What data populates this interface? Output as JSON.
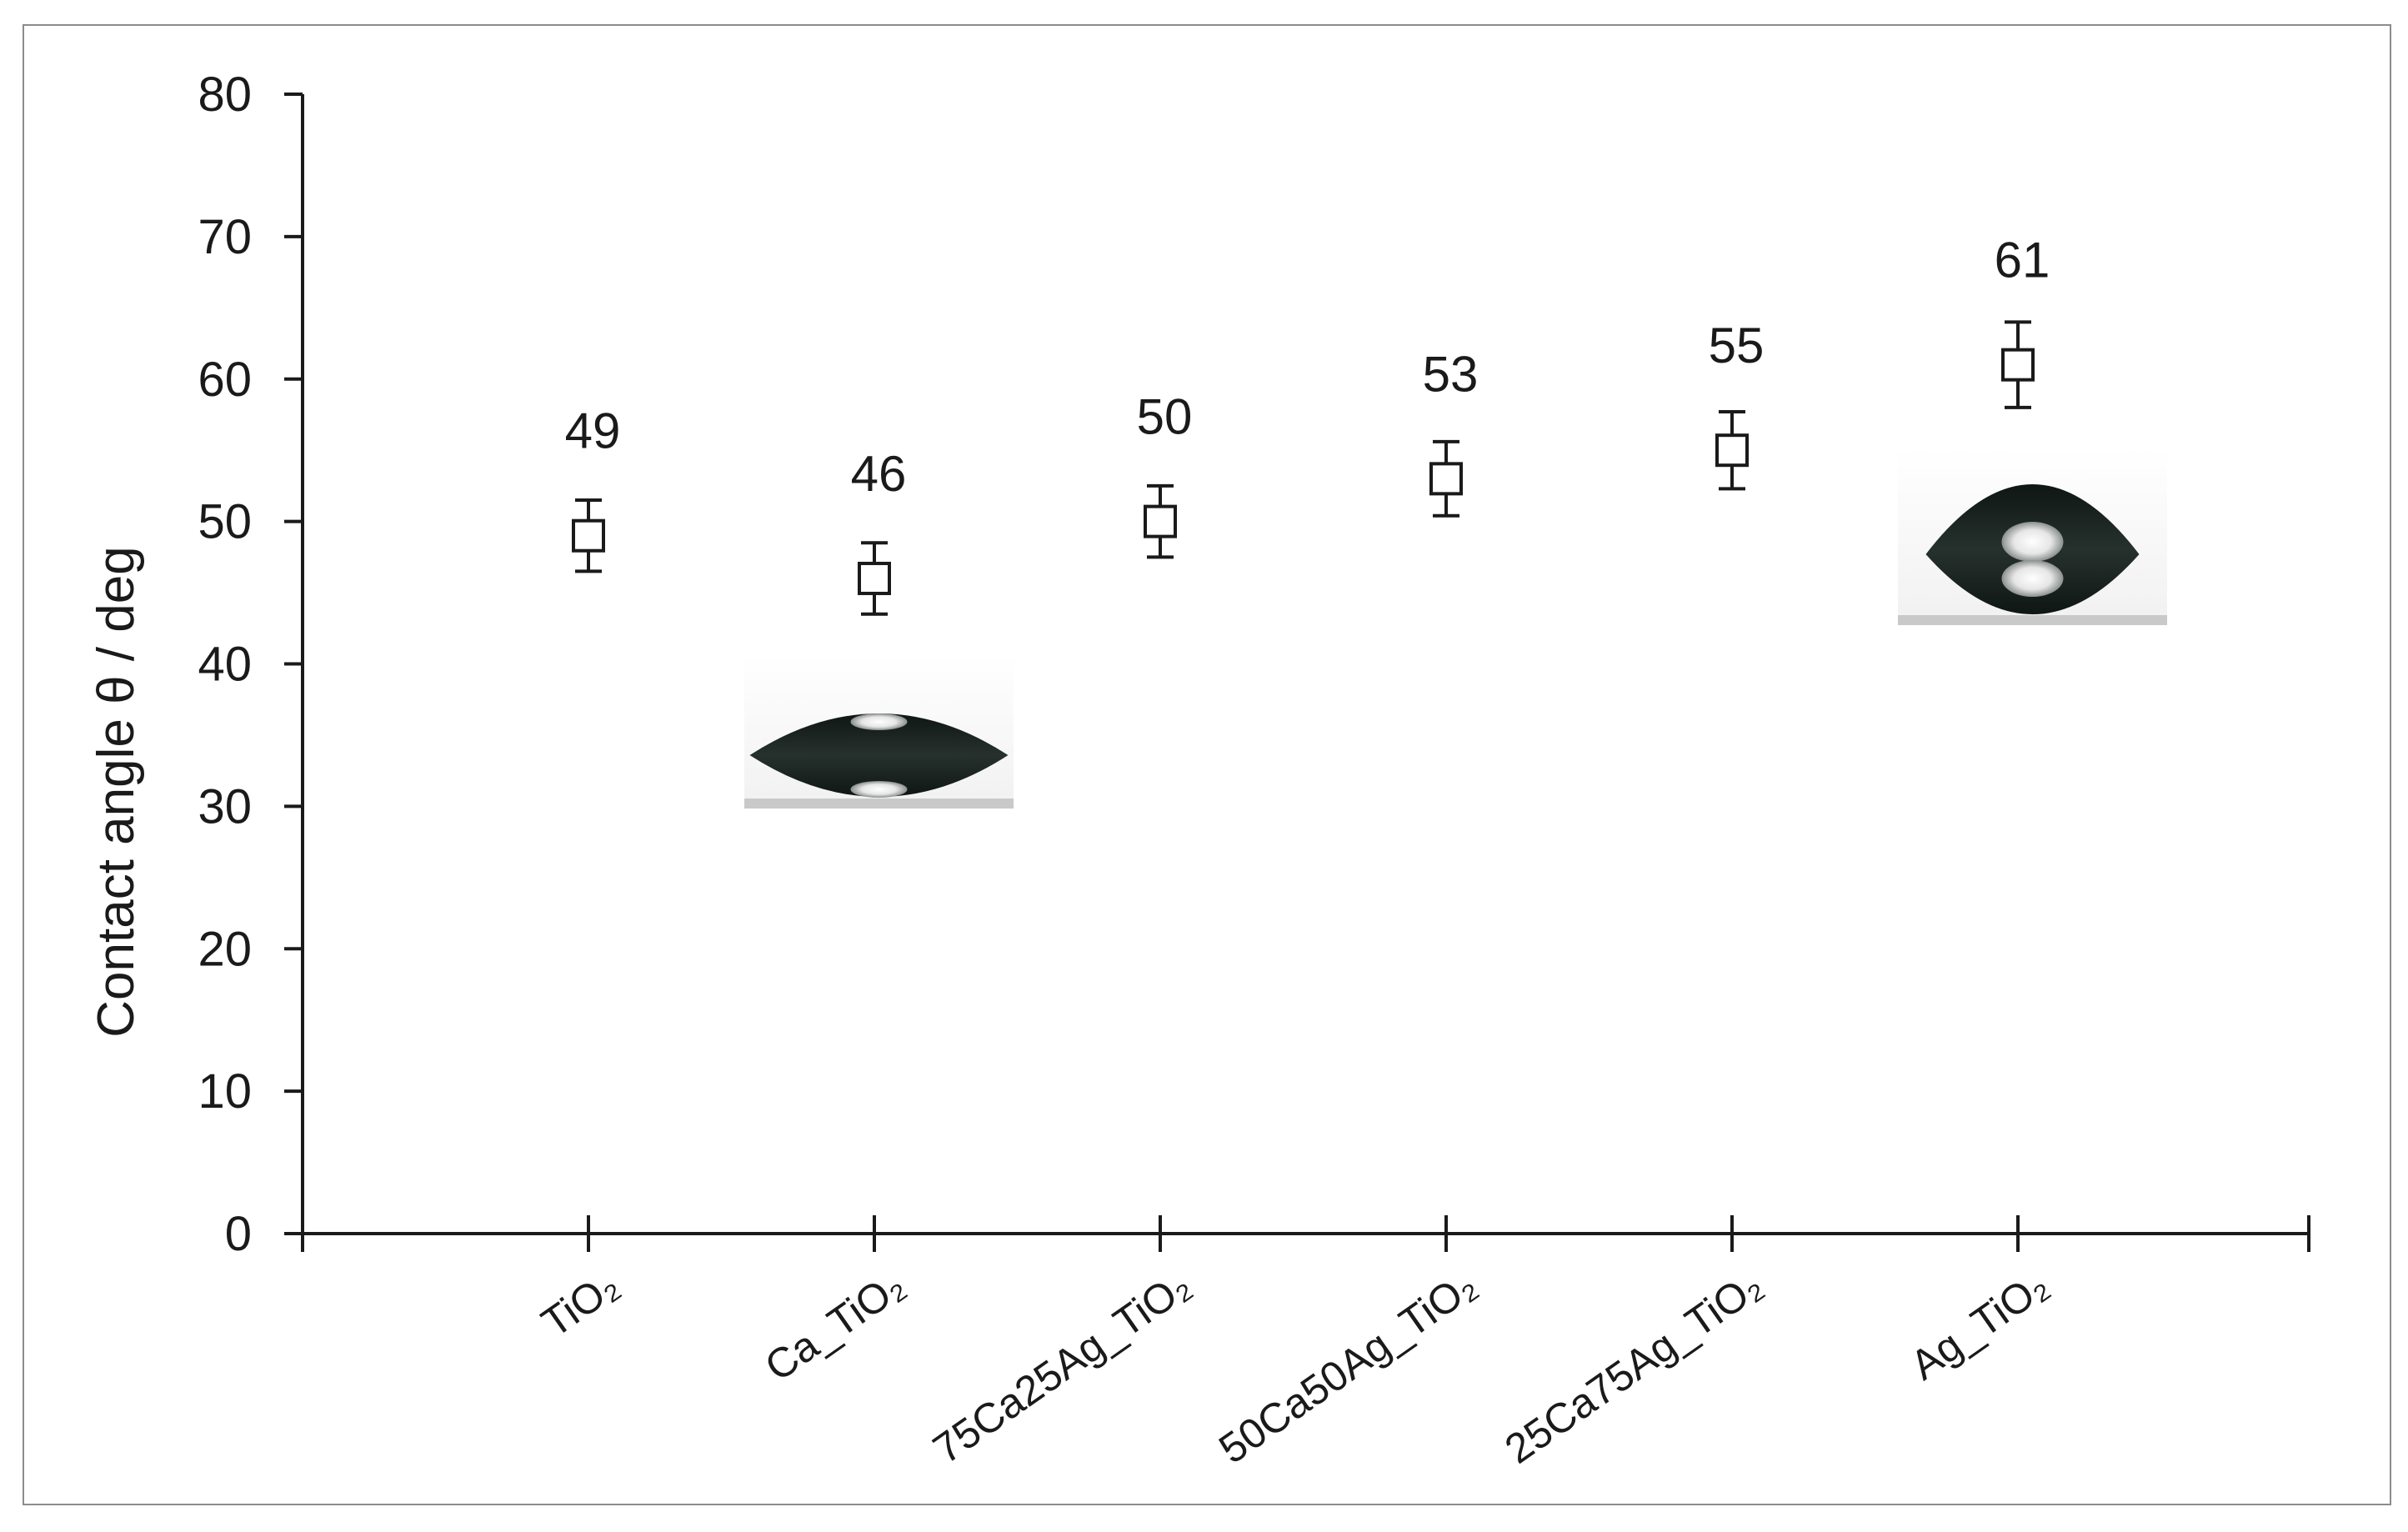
{
  "chart_data": {
    "type": "scatter",
    "title": "",
    "xlabel": "",
    "ylabel": "Contact angle θ / deg",
    "ylim": [
      0,
      80
    ],
    "yticks": [
      0,
      10,
      20,
      30,
      40,
      50,
      60,
      70,
      80
    ],
    "grid": false,
    "legend": "none",
    "marker": "open-square",
    "categories": [
      "TiO₂",
      "Ca_TiO₂",
      "75Ca25Ag_TiO₂",
      "50Ca50Ag_TiO₂",
      "25Ca75Ag_TiO₂",
      "Ag_TiO₂"
    ],
    "series": [
      {
        "values": [
          49,
          46,
          50,
          53,
          55,
          61
        ],
        "error": [
          2.5,
          2.5,
          2.5,
          2.6,
          2.7,
          3.0
        ],
        "labels": [
          "49",
          "46",
          "50",
          "53",
          "55",
          "61"
        ]
      }
    ],
    "insets": [
      {
        "kind": "droplet-photo",
        "category": "Ca_TiO₂",
        "description_hidden": true
      },
      {
        "kind": "droplet-photo",
        "category": "Ag_TiO₂",
        "description_hidden": true
      }
    ],
    "colors": {
      "axis": "#1a1a1a",
      "frame": "#8c8c8c",
      "droplet": "#1c2522",
      "background": "#ffffff"
    }
  }
}
